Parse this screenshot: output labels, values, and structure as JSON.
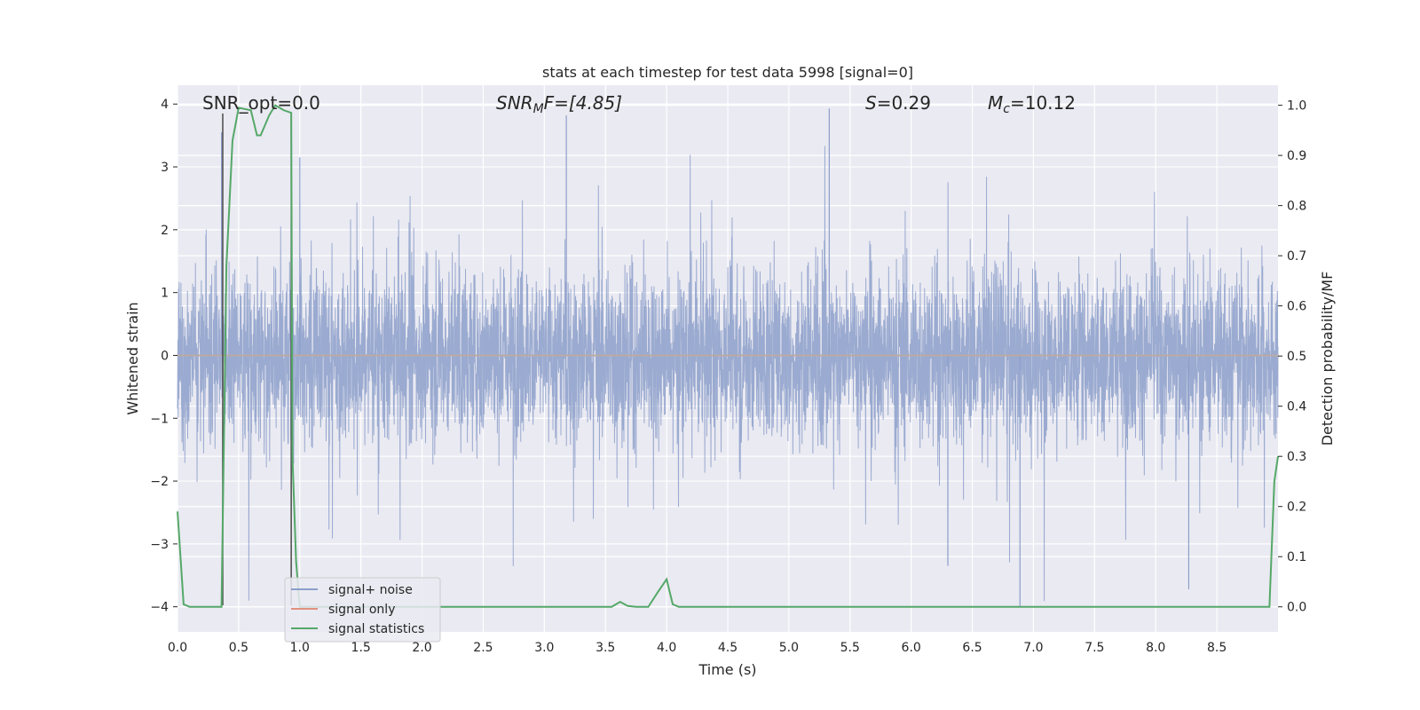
{
  "chart_data": {
    "type": "line",
    "title": "stats at each timestep for test data 5998 [signal=0]",
    "xlabel": "Time (s)",
    "ylabel": "Whitened strain",
    "ylabel_right": "Detection probability/MF",
    "xlim": [
      0.0,
      9.0
    ],
    "ylim": [
      -4.4,
      4.3
    ],
    "ylim_right": [
      -0.05,
      1.04
    ],
    "x_ticks": [
      "0.0",
      "0.5",
      "1.0",
      "1.5",
      "2.0",
      "2.5",
      "3.0",
      "3.5",
      "4.0",
      "4.5",
      "5.0",
      "5.5",
      "6.0",
      "6.5",
      "7.0",
      "7.5",
      "8.0",
      "8.5"
    ],
    "y_ticks": [
      "4",
      "3",
      "2",
      "1",
      "0",
      "−1",
      "−2",
      "−3",
      "−4"
    ],
    "y_ticks_right": [
      "1.0",
      "0.9",
      "0.8",
      "0.7",
      "0.6",
      "0.5",
      "0.4",
      "0.3",
      "0.2",
      "0.1",
      "0.0"
    ],
    "grid": true,
    "legend_position": "lower-left",
    "annotations": {
      "snr_opt": "SNR_opt=0.0",
      "snr_mf_prefix": "SNR",
      "snr_mf_sub": "M",
      "snr_mf_suffix": "F=[4.85]",
      "s_prefix": "S",
      "s_suffix": "=0.29",
      "mc_prefix": "M",
      "mc_sub": "c",
      "mc_suffix": "=10.12"
    },
    "vertical_lines_x": [
      0.37,
      0.93
    ],
    "series": [
      {
        "name": "signal+ noise",
        "color": "#8c9fca",
        "description_axis": "left",
        "noise_band": {
          "typical_low": -1.6,
          "typical_high": 1.5,
          "max": 3.95,
          "min": -4.0,
          "samples_per_second": 2048
        }
      },
      {
        "name": "signal only",
        "color": "#e1917d",
        "axis": "left",
        "x": [
          0.0,
          9.0
        ],
        "values": [
          0.0,
          0.0
        ]
      },
      {
        "name": "signal statistics",
        "color": "#55a868",
        "axis": "right",
        "x": [
          0.0,
          0.05,
          0.1,
          0.15,
          0.2,
          0.25,
          0.3,
          0.36,
          0.4,
          0.45,
          0.5,
          0.6,
          0.65,
          0.68,
          0.75,
          0.8,
          0.87,
          0.93,
          0.94,
          0.97,
          1.0,
          1.05,
          1.1,
          1.2,
          1.5,
          2.0,
          2.5,
          3.0,
          3.5,
          3.55,
          3.62,
          3.68,
          3.75,
          3.85,
          3.93,
          4.0,
          4.05,
          4.1,
          4.2,
          4.5,
          5.0,
          5.5,
          6.0,
          6.5,
          7.0,
          7.5,
          8.0,
          8.5,
          8.93,
          8.97,
          9.0
        ],
        "values": [
          0.19,
          0.005,
          0.0,
          0.0,
          0.0,
          0.0,
          0.0,
          0.0,
          0.68,
          0.93,
          0.995,
          0.99,
          0.94,
          0.94,
          0.98,
          1.0,
          0.99,
          0.985,
          0.3,
          0.09,
          0.0,
          0.0,
          0.0,
          0.0,
          0.0,
          0.0,
          0.0,
          0.0,
          0.0,
          0.0,
          0.01,
          0.002,
          0.0,
          0.0,
          0.03,
          0.055,
          0.005,
          0.0,
          0.0,
          0.0,
          0.0,
          0.0,
          0.0,
          0.0,
          0.0,
          0.0,
          0.0,
          0.0,
          0.0,
          0.25,
          0.3
        ]
      }
    ]
  }
}
